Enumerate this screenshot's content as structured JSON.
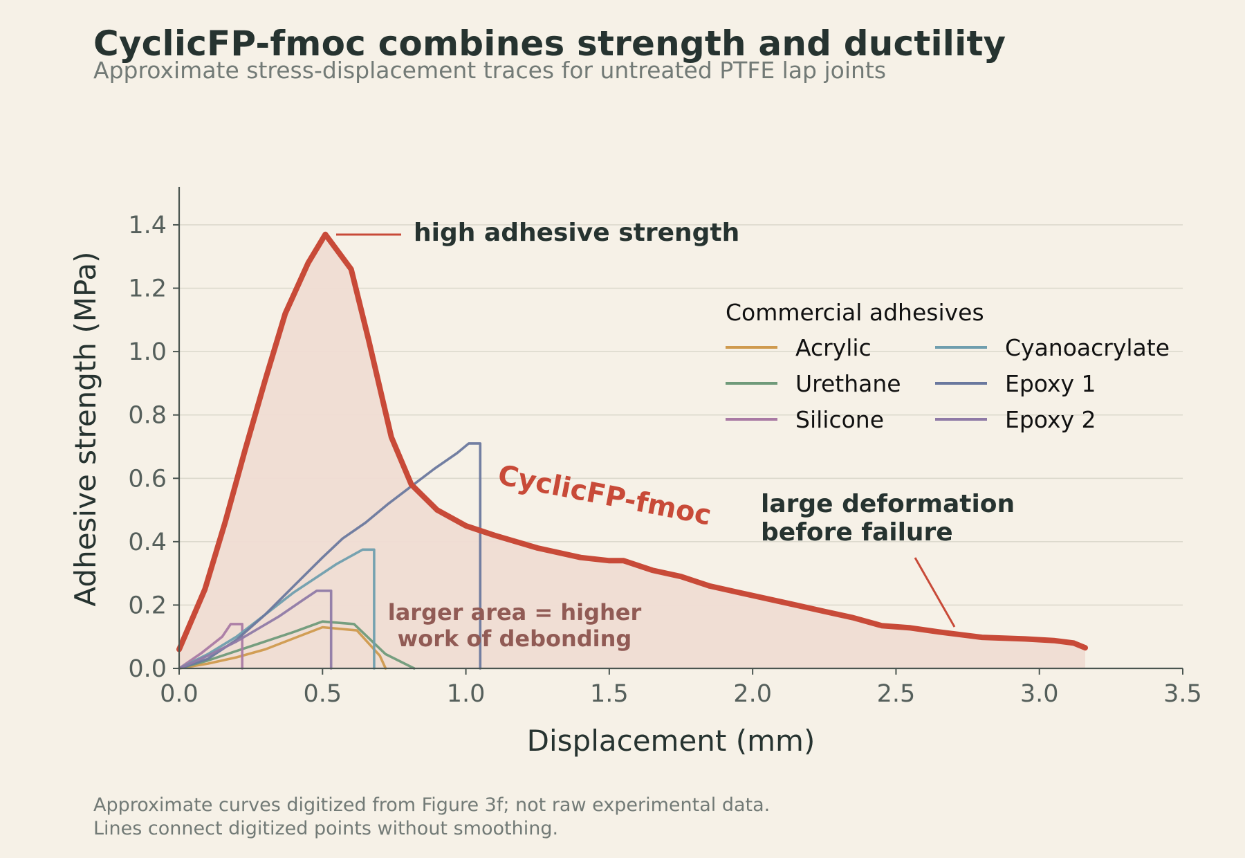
{
  "title": "CyclicFP-fmoc combines strength and ductility",
  "subtitle": "Approximate stress-displacement traces for untreated PTFE lap joints",
  "footnotes": [
    "Approximate curves digitized from Figure 3f; not raw experimental data.",
    "Lines connect digitized points without smoothing."
  ],
  "colors": {
    "background": "#f6f1e7",
    "highlight": "#c84a38",
    "fill": "#efdcd3",
    "axis": "#4a5550",
    "grid": "#dcd9cd",
    "text": "#263330"
  },
  "chart_data": {
    "type": "line",
    "xlabel": "Displacement (mm)",
    "ylabel": "Adhesive strength (MPa)",
    "xlim": [
      0,
      3.5
    ],
    "ylim": [
      0,
      1.52
    ],
    "xticks": [
      0.0,
      0.5,
      1.0,
      1.5,
      2.0,
      2.5,
      3.0,
      3.5
    ],
    "xtick_labels": [
      "0.0",
      "0.5",
      "1.0",
      "1.5",
      "2.0",
      "2.5",
      "3.0",
      "3.5"
    ],
    "yticks": [
      0.0,
      0.2,
      0.4,
      0.6,
      0.8,
      1.0,
      1.2,
      1.4
    ],
    "ytick_labels": [
      "0.0",
      "0.2",
      "0.4",
      "0.6",
      "0.8",
      "1.0",
      "1.2",
      "1.4"
    ],
    "grid": "horizontal",
    "legend": {
      "title": "Commercial adhesives",
      "placement": "upper-right",
      "columns": 2,
      "entries": [
        "Acrylic",
        "Urethane",
        "Silicone",
        "Cyanoacrylate",
        "Epoxy 1",
        "Epoxy 2"
      ]
    },
    "highlight": {
      "name": "CyclicFP-fmoc",
      "color": "#c84a38",
      "filled": true,
      "x": [
        0.0,
        0.09,
        0.16,
        0.23,
        0.3,
        0.37,
        0.45,
        0.51,
        0.6,
        0.66,
        0.74,
        0.81,
        0.9,
        1.0,
        1.1,
        1.25,
        1.4,
        1.5,
        1.55,
        1.65,
        1.75,
        1.85,
        1.95,
        2.1,
        2.25,
        2.35,
        2.45,
        2.55,
        2.65,
        2.8,
        2.95,
        3.05,
        3.12,
        3.16
      ],
      "y": [
        0.06,
        0.25,
        0.46,
        0.69,
        0.91,
        1.12,
        1.28,
        1.37,
        1.26,
        1.04,
        0.73,
        0.58,
        0.5,
        0.45,
        0.42,
        0.38,
        0.35,
        0.34,
        0.34,
        0.31,
        0.29,
        0.26,
        0.24,
        0.21,
        0.18,
        0.16,
        0.135,
        0.128,
        0.115,
        0.098,
        0.093,
        0.088,
        0.08,
        0.065
      ]
    },
    "series": [
      {
        "name": "Acrylic",
        "color": "#cf9a4e",
        "x": [
          0.0,
          0.1,
          0.2,
          0.3,
          0.4,
          0.5,
          0.62,
          0.7,
          0.72
        ],
        "y": [
          0.0,
          0.015,
          0.035,
          0.06,
          0.095,
          0.13,
          0.12,
          0.04,
          0.0
        ]
      },
      {
        "name": "Urethane",
        "color": "#6f9a7a",
        "x": [
          0.0,
          0.1,
          0.2,
          0.3,
          0.4,
          0.5,
          0.61,
          0.72,
          0.82
        ],
        "y": [
          0.0,
          0.025,
          0.055,
          0.085,
          0.115,
          0.148,
          0.14,
          0.045,
          0.0
        ]
      },
      {
        "name": "Silicone",
        "color": "#a97aa4",
        "x": [
          0.0,
          0.08,
          0.15,
          0.18,
          0.22,
          0.22
        ],
        "y": [
          0.0,
          0.05,
          0.1,
          0.14,
          0.14,
          0.0
        ]
      },
      {
        "name": "Cyanoacrylate",
        "color": "#6f9eae",
        "x": [
          0.0,
          0.1,
          0.2,
          0.3,
          0.4,
          0.5,
          0.55,
          0.64,
          0.68,
          0.68
        ],
        "y": [
          0.0,
          0.045,
          0.1,
          0.17,
          0.24,
          0.3,
          0.33,
          0.375,
          0.375,
          0.0
        ]
      },
      {
        "name": "Epoxy 1",
        "color": "#6a789e",
        "x": [
          0.0,
          0.1,
          0.2,
          0.3,
          0.4,
          0.5,
          0.57,
          0.65,
          0.73,
          0.81,
          0.89,
          0.97,
          1.01,
          1.05,
          1.05
        ],
        "y": [
          0.0,
          0.03,
          0.09,
          0.17,
          0.26,
          0.35,
          0.41,
          0.46,
          0.52,
          0.575,
          0.63,
          0.68,
          0.71,
          0.71,
          0.0
        ]
      },
      {
        "name": "Epoxy 2",
        "color": "#8f7aa6",
        "x": [
          0.0,
          0.1,
          0.2,
          0.35,
          0.43,
          0.48,
          0.53,
          0.53
        ],
        "y": [
          0.0,
          0.04,
          0.085,
          0.165,
          0.215,
          0.245,
          0.245,
          0.0
        ]
      }
    ],
    "annotations": [
      {
        "text": "high adhesive strength",
        "target": [
          0.55,
          1.37
        ]
      },
      {
        "text_lines": [
          "large deformation",
          "before failure"
        ],
        "target": [
          2.7,
          0.12
        ]
      },
      {
        "text_lines": [
          "larger area = higher",
          "work of debonding"
        ]
      },
      {
        "text": "CyclicFP-fmoc",
        "series_label": true
      }
    ]
  }
}
